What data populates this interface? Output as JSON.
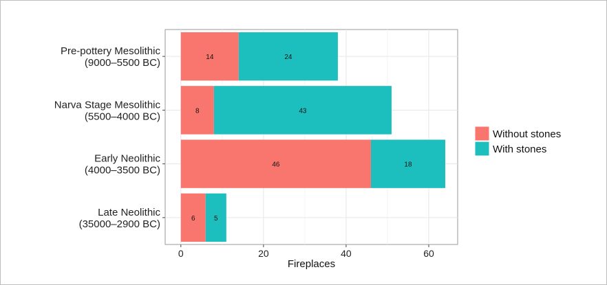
{
  "chart_data": {
    "type": "bar",
    "orientation": "horizontal",
    "stacked": true,
    "categories": [
      [
        "Pre-pottery Mesolithic",
        "(9000–5500 BC)"
      ],
      [
        "Narva Stage Mesolithic",
        "(5500–4000 BC)"
      ],
      [
        "Early Neolithic",
        "(4000–3500 BC)"
      ],
      [
        "Late Neolithic",
        "(35000–2900 BC)"
      ]
    ],
    "series": [
      {
        "name": "Without stones",
        "color": "#f8766d",
        "values": [
          14,
          8,
          46,
          6
        ]
      },
      {
        "name": "With stones",
        "color": "#1dbfbe",
        "values": [
          24,
          43,
          18,
          5
        ]
      }
    ],
    "xlabel": "Fireplaces",
    "ylabel": "",
    "xlim": [
      -3.8,
      67
    ],
    "xticks": [
      0,
      20,
      40,
      60
    ],
    "grid": true,
    "legend_position": "right"
  }
}
